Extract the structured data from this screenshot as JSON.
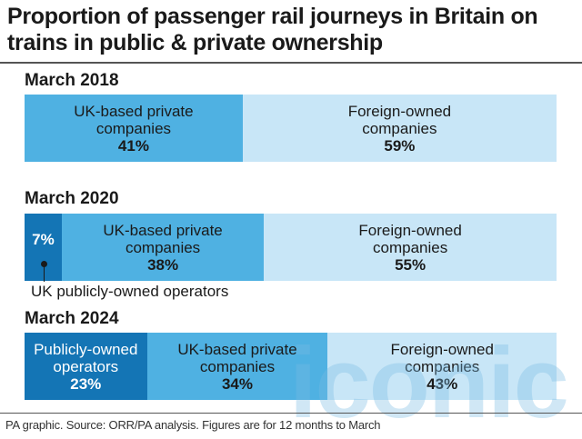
{
  "title": "Proportion of passenger rail journeys in Britain on trains in public & private ownership",
  "source": "PA graphic. Source: ORR/PA analysis. Figures are for 12 months to March",
  "watermark": "iconic",
  "colors": {
    "public": "#1475b5",
    "uk_private": "#4fb1e2",
    "foreign": "#c8e6f7"
  },
  "chart_data": [
    {
      "type": "bar",
      "stacked": "100%",
      "period": "March 2018",
      "segments": [
        {
          "name": "UK-based private companies",
          "label_lines": [
            "UK-based private",
            "companies"
          ],
          "value": 41,
          "pct_label": "41%"
        },
        {
          "name": "Foreign-owned companies",
          "label_lines": [
            "Foreign-owned",
            "companies"
          ],
          "value": 59,
          "pct_label": "59%"
        }
      ]
    },
    {
      "type": "bar",
      "stacked": "100%",
      "period": "March 2020",
      "segments": [
        {
          "name": "UK publicly-owned operators",
          "label_lines": [],
          "value": 7,
          "pct_label": "7%"
        },
        {
          "name": "UK-based private companies",
          "label_lines": [
            "UK-based private",
            "companies"
          ],
          "value": 38,
          "pct_label": "38%"
        },
        {
          "name": "Foreign-owned companies",
          "label_lines": [
            "Foreign-owned",
            "companies"
          ],
          "value": 55,
          "pct_label": "55%"
        }
      ],
      "annotation": "UK publicly-owned operators"
    },
    {
      "type": "bar",
      "stacked": "100%",
      "period": "March 2024",
      "segments": [
        {
          "name": "Publicly-owned operators",
          "label_lines": [
            "Publicly-owned",
            "operators"
          ],
          "value": 23,
          "pct_label": "23%"
        },
        {
          "name": "UK-based private companies",
          "label_lines": [
            "UK-based private",
            "companies"
          ],
          "value": 34,
          "pct_label": "34%"
        },
        {
          "name": "Foreign-owned companies",
          "label_lines": [
            "Foreign-owned",
            "companies"
          ],
          "value": 43,
          "pct_label": "43%"
        }
      ]
    }
  ]
}
